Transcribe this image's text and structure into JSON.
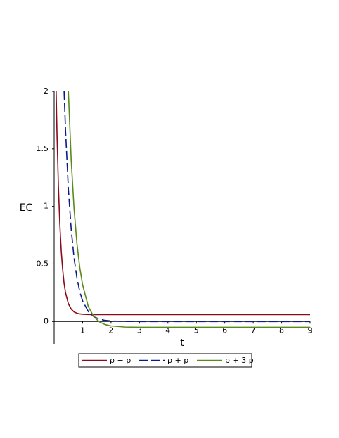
{
  "chart_data": {
    "type": "line",
    "y_label": "EC",
    "x_label": "t",
    "x": [
      0.07,
      0.1,
      0.15,
      0.2,
      0.25,
      0.3,
      0.35,
      0.4,
      0.5,
      0.6,
      0.7,
      0.8,
      0.9,
      1,
      1.2,
      1.4,
      1.6,
      1.8,
      2,
      2.5,
      3,
      4,
      5,
      6,
      7,
      8,
      9
    ],
    "series": [
      {
        "name": "ρ − p",
        "color": "#8b0a1a",
        "dash": false,
        "values": [
          2.0,
          1.63,
          1.17,
          0.84,
          0.61,
          0.45,
          0.33,
          0.25,
          0.155,
          0.108,
          0.083,
          0.072,
          0.066,
          0.063,
          0.061,
          0.06,
          0.06,
          0.06,
          0.06,
          0.06,
          0.06,
          0.06,
          0.06,
          0.06,
          0.06,
          0.06,
          0.06
        ]
      },
      {
        "name": "ρ + p",
        "color": "#0a1a8c",
        "dash": true,
        "values": [
          null,
          null,
          null,
          null,
          null,
          null,
          2.0,
          1.66,
          1.15,
          0.8,
          0.55,
          0.38,
          0.26,
          0.18,
          0.087,
          0.041,
          0.02,
          0.0095,
          0.0045,
          0.0007,
          0,
          0,
          0,
          0,
          0,
          0,
          0
        ]
      },
      {
        "name": "ρ + 3 p",
        "color": "#5a8a1a",
        "dash": false,
        "values": [
          null,
          null,
          null,
          null,
          null,
          null,
          null,
          null,
          2.0,
          1.4,
          0.98,
          0.68,
          0.47,
          0.32,
          0.13,
          0.04,
          -0.004,
          -0.027,
          -0.038,
          -0.048,
          -0.05,
          -0.05,
          -0.05,
          -0.05,
          -0.05,
          -0.05,
          -0.05
        ]
      }
    ],
    "xlim": [
      0,
      9
    ],
    "ylim": [
      -0.2,
      2
    ],
    "xticks": [
      1,
      2,
      3,
      4,
      5,
      6,
      7,
      8,
      9
    ],
    "yticks": [
      0,
      0.5,
      1,
      1.5,
      2
    ]
  }
}
